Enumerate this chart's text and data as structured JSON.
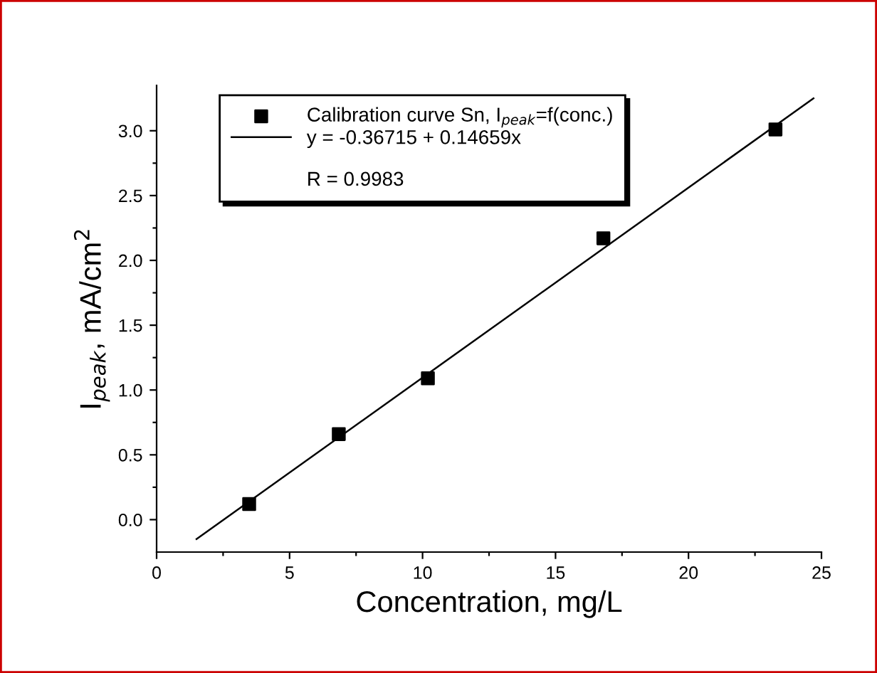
{
  "chart_data": {
    "type": "scatter",
    "xlabel": "Concentration, mg/L",
    "ylabel": "I$_{peak}$, mA/cm$^{2}$",
    "x": [
      3.48,
      6.85,
      10.2,
      16.8,
      23.27
    ],
    "series": [
      {
        "name": "Calibration curve Sn, I$_{peak}$=f(conc.)",
        "color": "#000000",
        "values": [
          0.12,
          0.66,
          1.09,
          2.17,
          3.01
        ],
        "marker": "square"
      },
      {
        "name": "y = -0.36715 + 0.14659x",
        "type": "line",
        "color": "#000000",
        "x": [
          1.5,
          24.7
        ],
        "values": [
          -0.15,
          3.25
        ],
        "marker": "none",
        "line_style": "solid"
      }
    ],
    "annotations": [
      "R = 0.9983"
    ],
    "xlim": [
      0,
      25
    ],
    "xticks": [
      0,
      {
        "value": 2.5,
        "label": null
      },
      5,
      {
        "value": 7.5,
        "label": null
      },
      10,
      {
        "value": 12.5,
        "label": null
      },
      15,
      {
        "value": 17.5,
        "label": null
      },
      20,
      {
        "value": 22.5,
        "label": null
      },
      25
    ],
    "ylim": [
      -0.25,
      3.35
    ],
    "yticks": [
      {
        "value": 0,
        "label": "0.0"
      },
      {
        "value": 0.25,
        "label": null
      },
      {
        "value": 0.5,
        "label": "0.5"
      },
      {
        "value": 0.75,
        "label": null
      },
      {
        "value": 1,
        "label": "1.0"
      },
      {
        "value": 1.25,
        "label": null
      },
      {
        "value": 1.5,
        "label": "1.5"
      },
      {
        "value": 1.75,
        "label": null
      },
      {
        "value": 2,
        "label": "2.0"
      },
      {
        "value": 2.25,
        "label": null
      },
      {
        "value": 2.5,
        "label": "2.5"
      },
      {
        "value": 2.75,
        "label": null
      },
      {
        "value": 3,
        "label": "3.0"
      }
    ],
    "legend": "top left",
    "grid": false
  }
}
